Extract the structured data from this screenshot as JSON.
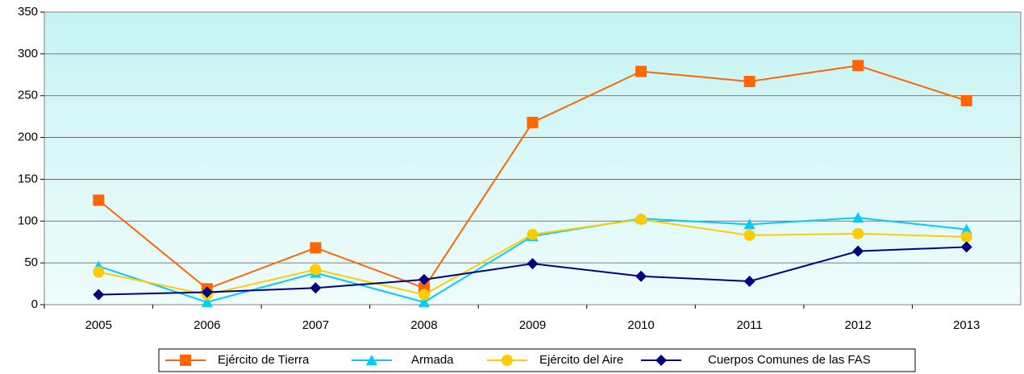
{
  "chart_data": {
    "type": "line",
    "categories": [
      "2005",
      "2006",
      "2007",
      "2008",
      "2009",
      "2010",
      "2011",
      "2012",
      "2013"
    ],
    "series": [
      {
        "name": "Ejército de Tierra",
        "color": "#FF6600",
        "marker": "square",
        "values": [
          125,
          19,
          68,
          20,
          218,
          279,
          267,
          286,
          244
        ]
      },
      {
        "name": "Armada",
        "color": "#00CCFF",
        "marker": "triangle",
        "values": [
          46,
          3,
          38,
          3,
          82,
          103,
          96,
          104,
          90
        ]
      },
      {
        "name": "Ejército del Aire",
        "color": "#FFCC00",
        "marker": "circle",
        "values": [
          39,
          12,
          42,
          12,
          84,
          102,
          83,
          85,
          81
        ]
      },
      {
        "name": "Cuerpos Comunes de las FAS",
        "color": "#000080",
        "marker": "diamond",
        "values": [
          12,
          15,
          20,
          30,
          49,
          34,
          28,
          64,
          69
        ]
      }
    ],
    "ylim": [
      0,
      350
    ],
    "yticks": [
      0,
      50,
      100,
      150,
      200,
      250,
      300,
      350
    ],
    "grid": true,
    "legend": "bottom"
  }
}
